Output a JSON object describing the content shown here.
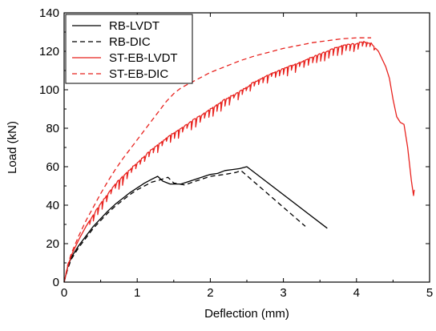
{
  "chart_data": {
    "type": "line",
    "title": "",
    "xlabel": "Deflection (mm)",
    "ylabel": "Load (kN)",
    "xlim": [
      0,
      5
    ],
    "ylim": [
      0,
      140
    ],
    "xticks": [
      0,
      1,
      2,
      3,
      4,
      5
    ],
    "yticks": [
      0,
      20,
      40,
      60,
      80,
      100,
      120,
      140
    ],
    "grid": false,
    "legend_position": "top-left",
    "series": [
      {
        "name": "RB-LVDT",
        "color": "#000000",
        "dash": "solid",
        "points": [
          [
            0,
            0
          ],
          [
            0.05,
            8
          ],
          [
            0.1,
            13
          ],
          [
            0.2,
            19
          ],
          [
            0.3,
            24
          ],
          [
            0.4,
            29
          ],
          [
            0.5,
            33
          ],
          [
            0.6,
            37
          ],
          [
            0.7,
            40.5
          ],
          [
            0.8,
            43.5
          ],
          [
            0.9,
            46.5
          ],
          [
            1.0,
            49
          ],
          [
            1.1,
            51.5
          ],
          [
            1.2,
            53.5
          ],
          [
            1.28,
            55
          ],
          [
            1.35,
            52.5
          ],
          [
            1.45,
            51
          ],
          [
            1.6,
            51
          ],
          [
            1.8,
            53.5
          ],
          [
            2.0,
            56
          ],
          [
            2.1,
            56.5
          ],
          [
            2.2,
            58
          ],
          [
            2.3,
            58.5
          ],
          [
            2.4,
            59
          ],
          [
            2.5,
            60
          ],
          [
            3.6,
            28
          ]
        ]
      },
      {
        "name": "RB-DIC",
        "color": "#000000",
        "dash": "dashed",
        "points": [
          [
            0,
            0
          ],
          [
            0.05,
            7
          ],
          [
            0.1,
            12
          ],
          [
            0.2,
            18
          ],
          [
            0.3,
            23
          ],
          [
            0.4,
            28
          ],
          [
            0.5,
            32
          ],
          [
            0.6,
            36
          ],
          [
            0.7,
            39.5
          ],
          [
            0.8,
            42.5
          ],
          [
            0.9,
            45.5
          ],
          [
            1.0,
            48
          ],
          [
            1.1,
            50
          ],
          [
            1.2,
            52
          ],
          [
            1.3,
            53
          ],
          [
            1.42,
            54.5
          ],
          [
            1.5,
            51.5
          ],
          [
            1.65,
            50.5
          ],
          [
            1.8,
            52.5
          ],
          [
            2.0,
            55
          ],
          [
            2.2,
            56
          ],
          [
            2.35,
            57
          ],
          [
            2.42,
            58
          ],
          [
            3.3,
            29
          ]
        ]
      },
      {
        "name": "ST-EB-LVDT",
        "color": "#e8231f",
        "dash": "solid",
        "points": [
          [
            0,
            0
          ],
          [
            0.05,
            8
          ],
          [
            0.1,
            14
          ],
          [
            0.2,
            22
          ],
          [
            0.3,
            29
          ],
          [
            0.4,
            35
          ],
          [
            0.5,
            41
          ],
          [
            0.6,
            46
          ],
          [
            0.7,
            51
          ],
          [
            0.8,
            55
          ],
          [
            0.9,
            58.5
          ],
          [
            1.0,
            62
          ],
          [
            1.2,
            69
          ],
          [
            1.4,
            75
          ],
          [
            1.6,
            80
          ],
          [
            1.8,
            85
          ],
          [
            2.0,
            90
          ],
          [
            2.2,
            95
          ],
          [
            2.4,
            99
          ],
          [
            2.6,
            104
          ],
          [
            2.8,
            108
          ],
          [
            3.0,
            111
          ],
          [
            3.2,
            114
          ],
          [
            3.4,
            117
          ],
          [
            3.6,
            120
          ],
          [
            3.8,
            123
          ],
          [
            4.0,
            124
          ],
          [
            4.1,
            125
          ],
          [
            4.2,
            124
          ],
          [
            4.3,
            120
          ],
          [
            4.4,
            112
          ],
          [
            4.45,
            106
          ],
          [
            4.5,
            95
          ],
          [
            4.55,
            86
          ],
          [
            4.6,
            83
          ],
          [
            4.65,
            82
          ],
          [
            4.7,
            70
          ],
          [
            4.75,
            53
          ],
          [
            4.78,
            45
          ],
          [
            4.79,
            48
          ]
        ]
      },
      {
        "name": "ST-EB-DIC",
        "color": "#e8231f",
        "dash": "dashed",
        "points": [
          [
            0,
            0
          ],
          [
            0.05,
            9
          ],
          [
            0.1,
            15
          ],
          [
            0.2,
            24
          ],
          [
            0.3,
            32
          ],
          [
            0.4,
            39
          ],
          [
            0.5,
            46
          ],
          [
            0.6,
            52.5
          ],
          [
            0.7,
            58.5
          ],
          [
            0.8,
            64
          ],
          [
            0.9,
            69
          ],
          [
            1.0,
            74
          ],
          [
            1.1,
            79
          ],
          [
            1.2,
            84
          ],
          [
            1.3,
            89
          ],
          [
            1.4,
            94
          ],
          [
            1.5,
            98
          ],
          [
            1.6,
            101
          ],
          [
            1.8,
            105
          ],
          [
            2.0,
            109
          ],
          [
            2.2,
            112
          ],
          [
            2.4,
            115
          ],
          [
            2.6,
            117.5
          ],
          [
            2.8,
            119.5
          ],
          [
            3.0,
            121.5
          ],
          [
            3.2,
            123
          ],
          [
            3.4,
            124.5
          ],
          [
            3.6,
            125.5
          ],
          [
            3.8,
            126.5
          ],
          [
            4.0,
            127
          ],
          [
            4.2,
            127
          ]
        ]
      }
    ]
  }
}
